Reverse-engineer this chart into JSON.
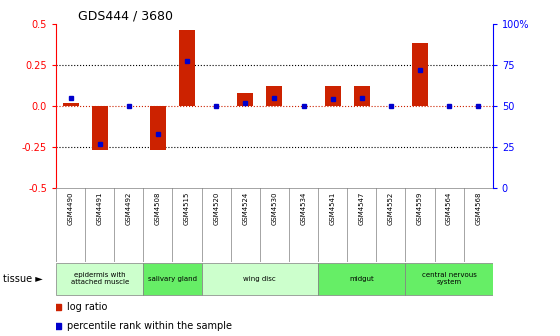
{
  "title": "GDS444 / 3680",
  "samples": [
    "GSM4490",
    "GSM4491",
    "GSM4492",
    "GSM4508",
    "GSM4515",
    "GSM4520",
    "GSM4524",
    "GSM4530",
    "GSM4534",
    "GSM4541",
    "GSM4547",
    "GSM4552",
    "GSM4559",
    "GSM4564",
    "GSM4568"
  ],
  "log_ratio": [
    0.02,
    -0.27,
    0.0,
    -0.27,
    0.46,
    0.0,
    0.08,
    0.12,
    0.0,
    0.12,
    0.12,
    0.0,
    0.38,
    0.0,
    0.0
  ],
  "percentile": [
    55,
    27,
    50,
    33,
    77,
    50,
    52,
    55,
    50,
    54,
    55,
    50,
    72,
    50,
    50
  ],
  "ylim_left": [
    -0.5,
    0.5
  ],
  "ylim_right": [
    0,
    100
  ],
  "yticks_left": [
    -0.5,
    -0.25,
    0.0,
    0.25,
    0.5
  ],
  "yticks_right": [
    0,
    25,
    50,
    75,
    100
  ],
  "ytick_labels_right": [
    "0",
    "25",
    "50",
    "75",
    "100%"
  ],
  "hlines_dotted": [
    0.25,
    -0.25
  ],
  "hline_zero_color": "#cc2200",
  "bar_color": "#cc2200",
  "dot_color": "#0000cc",
  "tissue_groups": [
    {
      "label": "epidermis with\nattached muscle",
      "start": 0,
      "end": 3,
      "color": "#ccffcc"
    },
    {
      "label": "salivary gland",
      "start": 3,
      "end": 5,
      "color": "#66ee66"
    },
    {
      "label": "wing disc",
      "start": 5,
      "end": 9,
      "color": "#ccffcc"
    },
    {
      "label": "midgut",
      "start": 9,
      "end": 12,
      "color": "#66ee66"
    },
    {
      "label": "central nervous\nsystem",
      "start": 12,
      "end": 15,
      "color": "#66ee66"
    }
  ],
  "legend_items": [
    {
      "label": "log ratio",
      "color": "#cc2200"
    },
    {
      "label": "percentile rank within the sample",
      "color": "#0000cc"
    }
  ]
}
